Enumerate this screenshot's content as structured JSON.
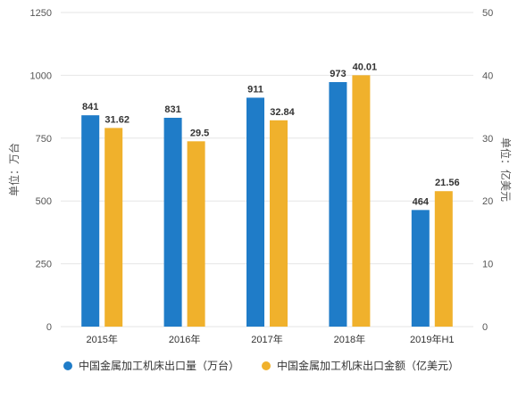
{
  "chart_data": {
    "type": "bar",
    "categories": [
      "2015年",
      "2016年",
      "2017年",
      "2018年",
      "2019年H1"
    ],
    "series": [
      {
        "name": "中国金属加工机床出口量（万台）",
        "axis": "left",
        "color": "#1f7cc8",
        "values": [
          841,
          831,
          911,
          973,
          464
        ],
        "labels": [
          "841",
          "831",
          "911",
          "973",
          "464"
        ]
      },
      {
        "name": "中国金属加工机床出口金额（亿美元）",
        "axis": "right",
        "color": "#f0b12c",
        "values": [
          31.62,
          29.5,
          32.84,
          40.01,
          21.56
        ],
        "labels": [
          "31.62",
          "29.5",
          "32.84",
          "40.01",
          "21.56"
        ]
      }
    ],
    "ylabel": "单位：万台",
    "ylabel_right": "单位：亿美元",
    "ylim": [
      0,
      1250
    ],
    "ylim_right": [
      0,
      50
    ],
    "yticks": [
      "0",
      "250",
      "500",
      "750",
      "1000",
      "1250"
    ],
    "yticks_right": [
      "0",
      "10",
      "20",
      "30",
      "40",
      "50"
    ],
    "grid": true,
    "legend_position": "bottom"
  }
}
